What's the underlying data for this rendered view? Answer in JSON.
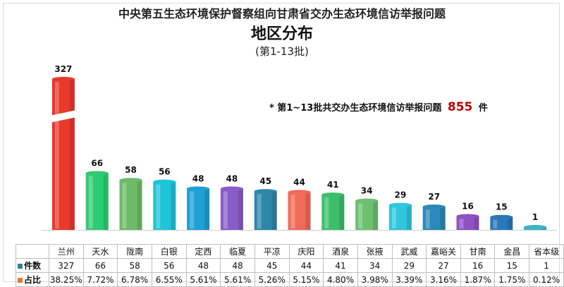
{
  "title": "中央第五生态环境保护督察组向甘肃省交办生态环境信访举报问题",
  "subtitle": "地区分布",
  "batch_label": "(第1-13批)",
  "total_note": {
    "prefix": "*  第1~13批共交办生态环境信访举报问题",
    "number": "855",
    "suffix": "件"
  },
  "table": {
    "row1_label": "件数",
    "row2_label": "占比",
    "row1_color": "#2e7fa0",
    "row2_color": "#e87a2b",
    "counts": [
      "327",
      "66",
      "58",
      "56",
      "48",
      "48",
      "45",
      "44",
      "41",
      "34",
      "29",
      "27",
      "16",
      "15",
      "1"
    ],
    "percents": [
      "38.25%",
      "7.72%",
      "6.78%",
      "6.55%",
      "5.61%",
      "5.61%",
      "5.26%",
      "5.15%",
      "4.80%",
      "3.98%",
      "3.39%",
      "3.16%",
      "1.87%",
      "1.75%",
      "0.12%"
    ]
  },
  "chart_data": {
    "type": "bar",
    "title": "中央第五生态环境保护督察组向甘肃省交办生态环境信访举报问题",
    "subtitle": "地区分布",
    "categories": [
      "兰州",
      "天水",
      "陇南",
      "白银",
      "定西",
      "临夏",
      "平凉",
      "庆阳",
      "酒泉",
      "张掖",
      "武威",
      "嘉峪关",
      "甘南",
      "金昌",
      "省本级"
    ],
    "values": [
      327,
      66,
      58,
      56,
      48,
      48,
      45,
      44,
      41,
      34,
      29,
      27,
      16,
      15,
      1
    ],
    "colors": [
      "#e8392b",
      "#2ecc71",
      "#6dbb68",
      "#1ec4d8",
      "#1ea0d6",
      "#8a5cc8",
      "#2e86ab",
      "#f06a5a",
      "#3dbf6a",
      "#6cc070",
      "#2ec6dc",
      "#2a89b8",
      "#8e52c4",
      "#2a78b8",
      "#3ab6c4"
    ],
    "broken_axis": true,
    "grid": false,
    "legend": "none"
  }
}
